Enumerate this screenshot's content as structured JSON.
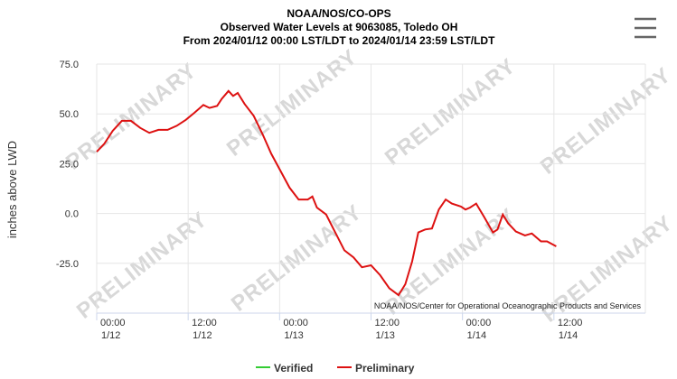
{
  "chart_data": {
    "type": "line",
    "title": "NOAA/NOS/CO-OPS",
    "subtitle": "Observed Water Levels at 9063085, Toledo OH",
    "subtitle2": "From 2024/01/12 00:00 LST/LDT to 2024/01/14 23:59 LST/LDT",
    "y_label": "inches above LWD",
    "credits": "NOAA/NOS/Center for Operational Oceanographic Products and Services",
    "watermark": "PRELIMINARY",
    "xlim": [
      0,
      72
    ],
    "xticks": [
      {
        "value": 0,
        "label": [
          "00:00",
          "1/12"
        ]
      },
      {
        "value": 12,
        "label": [
          "12:00",
          "1/12"
        ]
      },
      {
        "value": 24,
        "label": [
          "00:00",
          "1/13"
        ]
      },
      {
        "value": 36,
        "label": [
          "12:00",
          "1/13"
        ]
      },
      {
        "value": 48,
        "label": [
          "00:00",
          "1/14"
        ]
      },
      {
        "value": 60,
        "label": [
          "12:00",
          "1/14"
        ]
      }
    ],
    "ylim": [
      -50,
      75
    ],
    "yticks": [
      {
        "value": -25,
        "label": "-25.0"
      },
      {
        "value": 0,
        "label": "0.0"
      },
      {
        "value": 25,
        "label": "25.0"
      },
      {
        "value": 50,
        "label": "50.0"
      },
      {
        "value": 75,
        "label": "75.0"
      }
    ],
    "grid": true,
    "legend": "bottom",
    "series": [
      {
        "name": "Verified",
        "color": "#33cc33",
        "x": [],
        "values": []
      },
      {
        "name": "Preliminary",
        "color": "#dd1111",
        "x": [
          0,
          1,
          2.1,
          3.3,
          4.5,
          5.7,
          6.9,
          8.1,
          9.3,
          10.5,
          11.7,
          12.8,
          14,
          14.8,
          15.8,
          16.4,
          17.3,
          17.9,
          18.5,
          19.4,
          20.6,
          21.8,
          22.9,
          24.1,
          25.3,
          26.5,
          27.7,
          28.3,
          28.9,
          30.1,
          31.3,
          32.5,
          33.7,
          34.8,
          36,
          37.2,
          38.4,
          39.6,
          40.5,
          41.4,
          42.2,
          43.1,
          44,
          44.9,
          45.8,
          46.6,
          47.8,
          48.4,
          49,
          49.8,
          50.8,
          52,
          52.6,
          53.3,
          54,
          55,
          56.2,
          57.1,
          58.3,
          59.1,
          60.3
        ],
        "values": [
          31,
          35,
          41.5,
          46.5,
          46.5,
          43,
          40.5,
          42,
          42,
          44,
          47,
          50.5,
          54.5,
          53,
          54,
          57.5,
          61.5,
          59,
          60.5,
          55,
          49,
          39.5,
          30,
          21.5,
          13,
          7,
          7,
          8.5,
          3,
          -0.5,
          -9.5,
          -18.5,
          -22,
          -27,
          -26,
          -31,
          -37.5,
          -41,
          -35.5,
          -24,
          -9.5,
          -8,
          -7.5,
          2,
          7,
          5,
          3.5,
          2,
          3,
          5,
          -1.5,
          -9.5,
          -8,
          -0.5,
          -5,
          -9,
          -11,
          -10,
          -14,
          -14,
          -16.5
        ]
      }
    ]
  }
}
